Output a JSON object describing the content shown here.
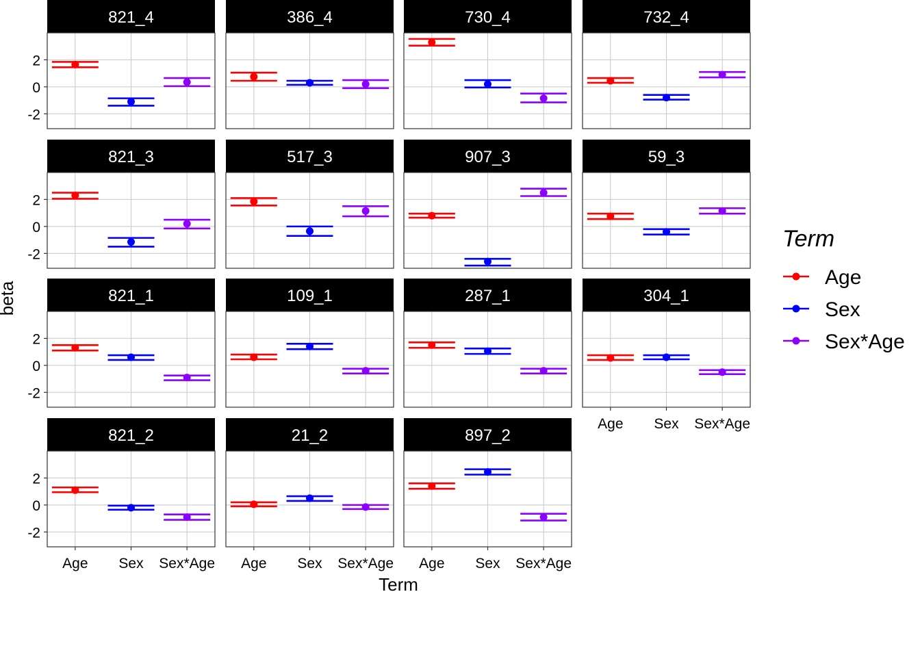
{
  "chart_data": {
    "type": "scatter",
    "subtype": "point-errorbar-facets",
    "xlabel": "Term",
    "ylabel": "beta",
    "categories": [
      "Age",
      "Sex",
      "Sex*Age"
    ],
    "ylim": [
      -3.1,
      4.0
    ],
    "yticks": [
      -2,
      0,
      2
    ],
    "ytick_labels": [
      "-2",
      "0",
      "2"
    ],
    "grid": true,
    "legend": {
      "title": "Term",
      "placement": "right",
      "entries": [
        {
          "label": "Age",
          "color": "#ff0000"
        },
        {
          "label": "Sex",
          "color": "#0000ff"
        },
        {
          "label": "Sex*Age",
          "color": "#8b00ff"
        }
      ]
    },
    "facets": [
      {
        "label": "821_4",
        "values": [
          [
            1.65,
            1.45,
            1.85
          ],
          [
            -1.1,
            -1.4,
            -0.85
          ],
          [
            0.35,
            0.05,
            0.65
          ]
        ]
      },
      {
        "label": "386_4",
        "values": [
          [
            0.75,
            0.45,
            1.05
          ],
          [
            0.3,
            0.15,
            0.45
          ],
          [
            0.2,
            -0.1,
            0.5
          ]
        ]
      },
      {
        "label": "730_4",
        "values": [
          [
            3.3,
            3.05,
            3.55
          ],
          [
            0.2,
            -0.05,
            0.5
          ],
          [
            -0.85,
            -1.15,
            -0.5
          ]
        ]
      },
      {
        "label": "732_4",
        "values": [
          [
            0.45,
            0.3,
            0.65
          ],
          [
            -0.8,
            -0.95,
            -0.6
          ],
          [
            0.9,
            0.7,
            1.1
          ]
        ]
      },
      {
        "label": "821_3",
        "values": [
          [
            2.3,
            2.05,
            2.5
          ],
          [
            -1.15,
            -1.5,
            -0.85
          ],
          [
            0.2,
            -0.15,
            0.5
          ]
        ]
      },
      {
        "label": "517_3",
        "values": [
          [
            1.85,
            1.55,
            2.1
          ],
          [
            -0.35,
            -0.7,
            0.0
          ],
          [
            1.15,
            0.75,
            1.5
          ]
        ]
      },
      {
        "label": "907_3",
        "values": [
          [
            0.8,
            0.65,
            0.95
          ],
          [
            -2.6,
            -2.9,
            -2.4
          ],
          [
            2.5,
            2.25,
            2.8
          ]
        ]
      },
      {
        "label": "59_3",
        "values": [
          [
            0.75,
            0.55,
            0.95
          ],
          [
            -0.4,
            -0.6,
            -0.2
          ],
          [
            1.15,
            0.95,
            1.35
          ]
        ]
      },
      {
        "label": "821_1",
        "values": [
          [
            1.3,
            1.1,
            1.5
          ],
          [
            0.6,
            0.4,
            0.75
          ],
          [
            -0.9,
            -1.1,
            -0.75
          ]
        ]
      },
      {
        "label": "109_1",
        "values": [
          [
            0.6,
            0.45,
            0.8
          ],
          [
            1.4,
            1.2,
            1.6
          ],
          [
            -0.4,
            -0.6,
            -0.25
          ]
        ]
      },
      {
        "label": "287_1",
        "values": [
          [
            1.5,
            1.3,
            1.7
          ],
          [
            1.05,
            0.85,
            1.25
          ],
          [
            -0.4,
            -0.6,
            -0.25
          ]
        ]
      },
      {
        "label": "304_1",
        "values": [
          [
            0.55,
            0.4,
            0.75
          ],
          [
            0.6,
            0.45,
            0.75
          ],
          [
            -0.5,
            -0.65,
            -0.35
          ]
        ]
      },
      {
        "label": "821_2",
        "values": [
          [
            1.1,
            0.95,
            1.3
          ],
          [
            -0.2,
            -0.35,
            -0.05
          ],
          [
            -0.9,
            -1.1,
            -0.7
          ]
        ]
      },
      {
        "label": "21_2",
        "values": [
          [
            0.05,
            -0.1,
            0.2
          ],
          [
            0.5,
            0.3,
            0.65
          ],
          [
            -0.15,
            -0.3,
            0.0
          ]
        ]
      },
      {
        "label": "897_2",
        "values": [
          [
            1.4,
            1.2,
            1.6
          ],
          [
            2.45,
            2.25,
            2.65
          ],
          [
            -0.9,
            -1.15,
            -0.65
          ]
        ]
      }
    ]
  }
}
